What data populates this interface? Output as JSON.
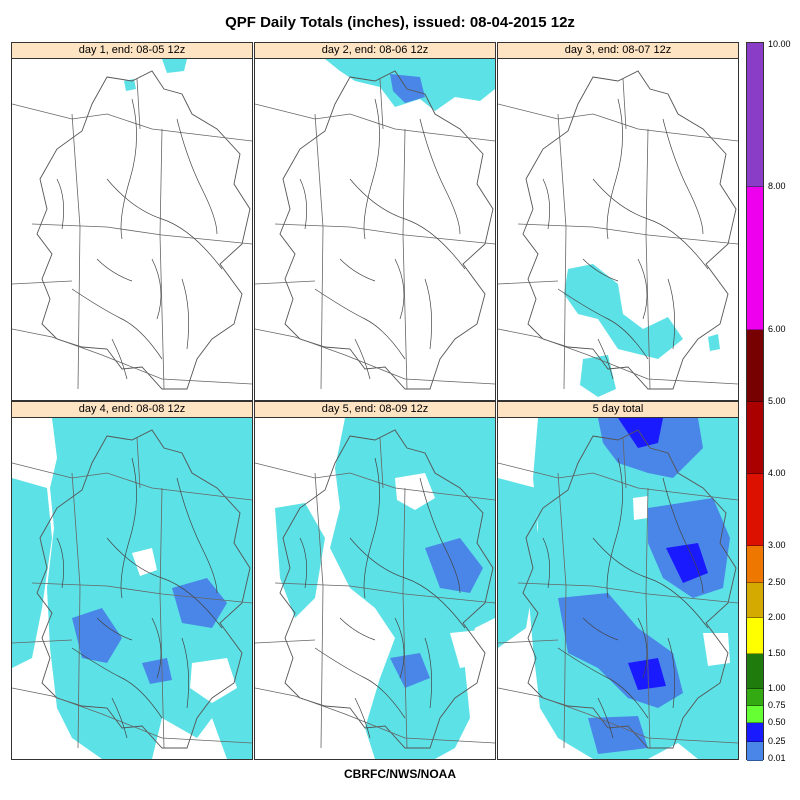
{
  "title": "QPF Daily Totals (inches),  issued: 08-04-2015 12z",
  "credit": "CBRFC/NWS/NOAA",
  "panels": [
    {
      "label": "day 1, end: 08-05 12z",
      "coverage": "minimal"
    },
    {
      "label": "day 2, end: 08-06 12z",
      "coverage": "light-north"
    },
    {
      "label": "day 3, end: 08-07 12z",
      "coverage": "light-south"
    },
    {
      "label": "day 4, end: 08-08 12z",
      "coverage": "widespread"
    },
    {
      "label": "day 5, end: 08-09 12z",
      "coverage": "widespread"
    },
    {
      "label": "5 day total",
      "coverage": "heavy"
    }
  ],
  "legend": {
    "ticks": [
      "10.00",
      "8.00",
      "6.00",
      "5.00",
      "4.00",
      "3.00",
      "2.50",
      "2.00",
      "1.50",
      "1.00",
      "0.75",
      "0.50",
      "0.25",
      "0.01"
    ],
    "colors": {
      "0.01-0.25": "#5ce1e6",
      "0.25-0.50": "#4a86e8",
      "0.50-0.75": "#1a1aff",
      "0.75-1.00": "#66ff33",
      "1.00-1.50": "#33aa11",
      "1.50-2.00": "#1e7b0c",
      "2.00-2.50": "#ffff00",
      "2.50-3.00": "#d4aa00",
      "3.00-4.00": "#ee7700",
      "4.00-5.00": "#dd1100",
      "5.00-6.00": "#aa0000",
      "6.00-8.00": "#770000",
      "8.00-10.00": "#ee00ee",
      "10.00+": "#8a3dc7"
    }
  }
}
